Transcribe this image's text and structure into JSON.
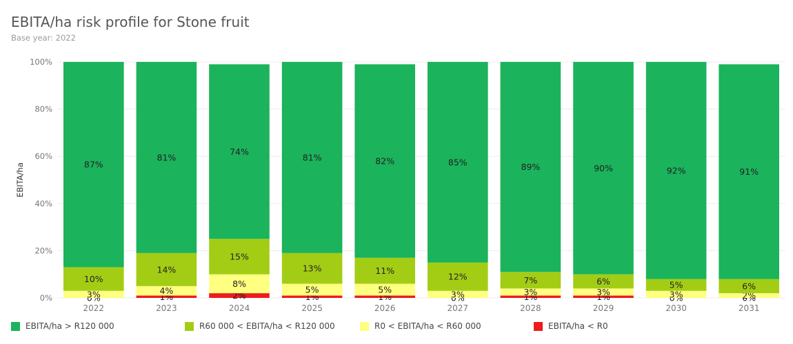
{
  "title": "EBITA/ha risk profile for Stone fruit",
  "subtitle": "Base year: 2022",
  "chart_data": {
    "type": "bar",
    "stacked": true,
    "percent": true,
    "categories": [
      "2022",
      "2023",
      "2024",
      "2025",
      "2026",
      "2027",
      "2028",
      "2029",
      "2030",
      "2031"
    ],
    "ylabel": "EBITA/ha",
    "xlabel": "",
    "ylim": [
      0,
      100
    ],
    "yticks": [
      "0%",
      "20%",
      "40%",
      "60%",
      "80%",
      "100%"
    ],
    "grid": true,
    "legend_position": "bottom",
    "series": [
      {
        "name": "EBITA/ha < R0",
        "color": "#ee1c1c",
        "values": [
          0,
          1,
          2,
          1,
          1,
          0,
          1,
          1,
          0,
          0
        ],
        "labels": [
          "0%",
          "1%",
          "2%",
          "1%",
          "1%",
          "0%",
          "1%",
          "1%",
          "0%",
          "0%"
        ]
      },
      {
        "name": "R0 < EBITA/ha < R60 000",
        "color": "#ffff80",
        "values": [
          3,
          4,
          8,
          5,
          5,
          3,
          3,
          3,
          3,
          2
        ],
        "labels": [
          "3%",
          "4%",
          "8%",
          "5%",
          "5%",
          "3%",
          "3%",
          "3%",
          "3%",
          "2%"
        ]
      },
      {
        "name": "R60 000 < EBITA/ha < R120 000",
        "color": "#a3cd15",
        "values": [
          10,
          14,
          15,
          13,
          11,
          12,
          7,
          6,
          5,
          6
        ],
        "labels": [
          "10%",
          "14%",
          "15%",
          "13%",
          "11%",
          "12%",
          "7%",
          "6%",
          "5%",
          "6%"
        ]
      },
      {
        "name": "EBITA/ha > R120 000",
        "color": "#1bb35c",
        "values": [
          87,
          81,
          74,
          81,
          82,
          85,
          89,
          90,
          92,
          91
        ],
        "labels": [
          "87%",
          "81%",
          "74%",
          "81%",
          "82%",
          "85%",
          "89%",
          "90%",
          "92%",
          "91%"
        ]
      }
    ],
    "legend_order": [
      "EBITA/ha > R120 000",
      "R60 000 < EBITA/ha < R120 000",
      "R0 < EBITA/ha < R60 000",
      "EBITA/ha < R0"
    ]
  }
}
